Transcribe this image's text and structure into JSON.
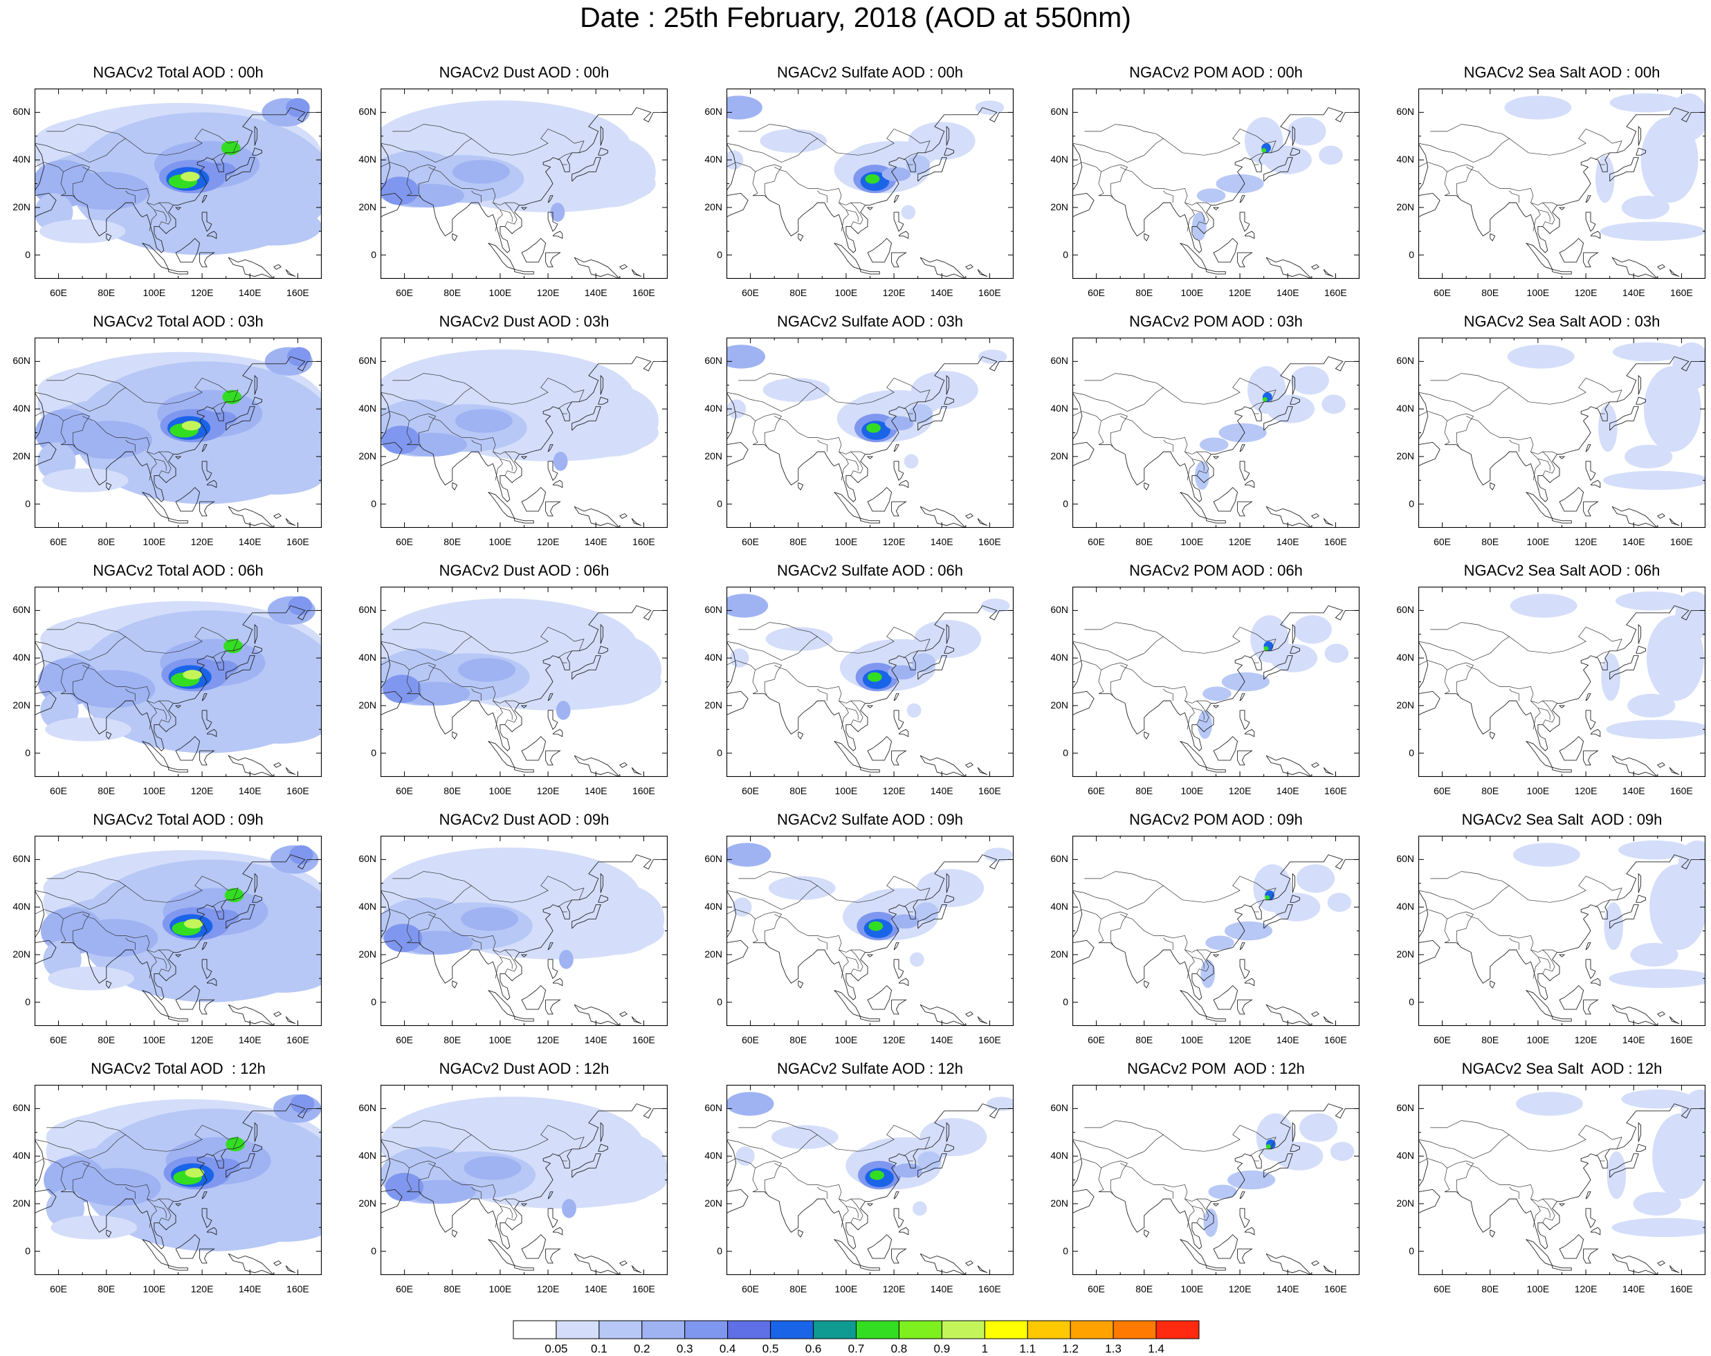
{
  "title": "Date : 25th February, 2018 (AOD at 550nm)",
  "rows": [
    {
      "hour": "00h",
      "titles": [
        "NGACv2 Total AOD : 00h",
        "NGACv2 Dust AOD : 00h",
        "NGACv2 Sulfate AOD : 00h",
        "NGACv2 POM AOD : 00h",
        "NGACv2 Sea Salt AOD : 00h"
      ]
    },
    {
      "hour": "03h",
      "titles": [
        "NGACv2 Total AOD : 03h",
        "NGACv2 Dust AOD : 03h",
        "NGACv2 Sulfate AOD : 03h",
        "NGACv2 POM AOD : 03h",
        "NGACv2 Sea Salt AOD : 03h"
      ]
    },
    {
      "hour": "06h",
      "titles": [
        "NGACv2 Total AOD : 06h",
        "NGACv2 Dust AOD : 06h",
        "NGACv2 Sulfate AOD : 06h",
        "NGACv2 POM AOD : 06h",
        "NGACv2 Sea Salt AOD : 06h"
      ]
    },
    {
      "hour": "09h",
      "titles": [
        "NGACv2 Total AOD : 09h",
        "NGACv2 Dust AOD : 09h",
        "NGACv2 Sulfate AOD : 09h",
        "NGACv2 POM AOD : 09h",
        "NGACv2 Sea Salt  AOD : 09h"
      ]
    },
    {
      "hour": "12h",
      "titles": [
        "NGACv2 Total AOD  : 12h",
        "NGACv2 Dust AOD : 12h",
        "NGACv2 Sulfate AOD : 12h",
        "NGACv2 POM  AOD : 12h",
        "NGACv2 Sea Salt  AOD : 12h"
      ]
    }
  ],
  "lat_ticks": [
    "60N",
    "40N",
    "20N",
    "0"
  ],
  "lon_ticks": [
    "60E",
    "80E",
    "100E",
    "120E",
    "140E",
    "160E"
  ],
  "colorbar": {
    "colors": [
      "#ffffff",
      "#d4defa",
      "#b7c8f6",
      "#9fb3f3",
      "#8097ef",
      "#5f6fe6",
      "#1a64e8",
      "#0f9a92",
      "#33dd22",
      "#7df01e",
      "#c3f55a",
      "#ffff00",
      "#ffc800",
      "#ffa200",
      "#ff7a00",
      "#ff2a0f"
    ],
    "labels": [
      "0.05",
      "0.1",
      "0.2",
      "0.3",
      "0.4",
      "0.5",
      "0.6",
      "0.7",
      "0.8",
      "0.9",
      "1",
      "1.1",
      "1.2",
      "1.3",
      "1.4"
    ]
  }
}
